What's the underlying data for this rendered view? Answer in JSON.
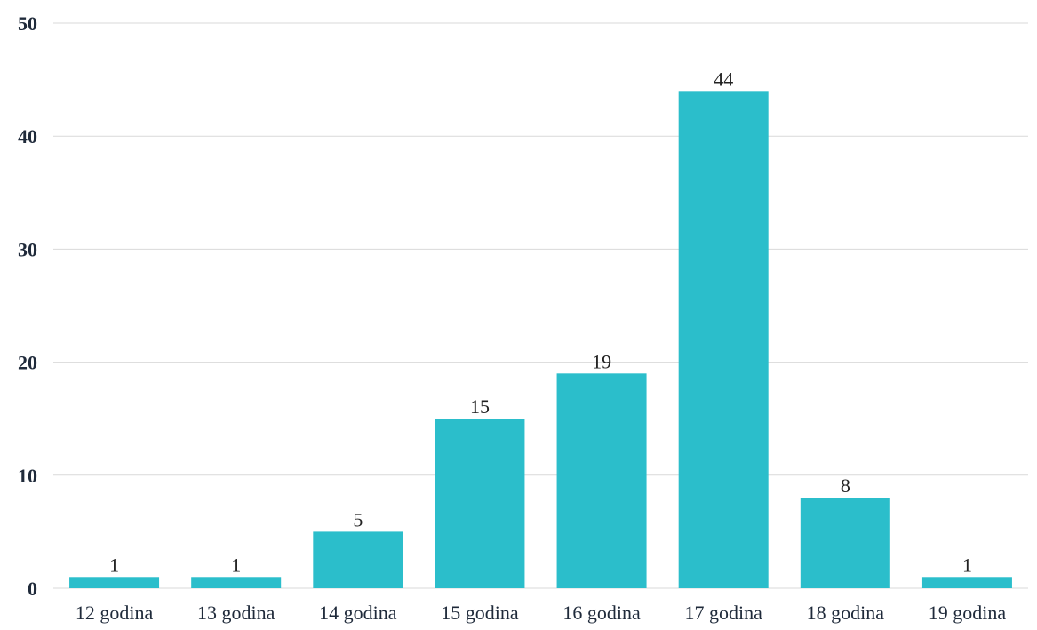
{
  "chart_data": {
    "type": "bar",
    "title": "",
    "xlabel": "",
    "ylabel": "",
    "categories": [
      "12 godina",
      "13 godina",
      "14 godina",
      "15 godina",
      "16 godina",
      "17 godina",
      "18 godina",
      "19 godina"
    ],
    "values": [
      1,
      1,
      5,
      15,
      19,
      44,
      8,
      1
    ],
    "data_labels": [
      "1",
      "1",
      "5",
      "15",
      "19",
      "44",
      "8",
      "1"
    ],
    "ylim": [
      0,
      50
    ],
    "yticks": [
      0,
      10,
      20,
      30,
      40,
      50
    ],
    "ytick_labels": [
      "0",
      "10",
      "20",
      "30",
      "40",
      "50"
    ],
    "grid": true,
    "legend": "none",
    "bar_color": "#2bbecb",
    "gridline_color": "#d9d9d9",
    "axis_text_color": "#1f2a3a"
  }
}
